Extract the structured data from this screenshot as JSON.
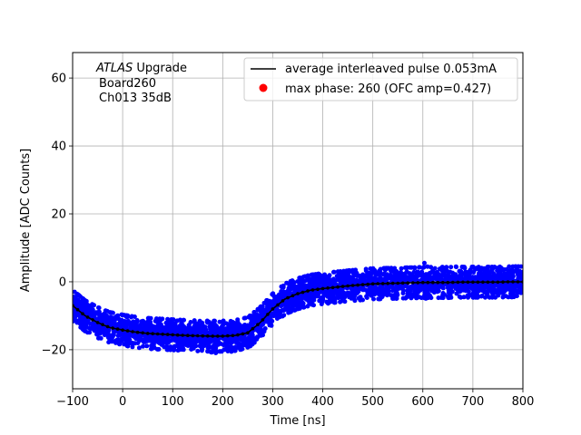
{
  "chart_data": {
    "type": "scatter",
    "xlabel": "Time [ns]",
    "ylabel": "Amplitude [ADC Counts]",
    "xlim": [
      -100,
      800
    ],
    "ylim": [
      -31.5,
      67.5
    ],
    "xticks": [
      -100,
      0,
      100,
      200,
      300,
      400,
      500,
      600,
      700,
      800
    ],
    "yticks": [
      -20,
      0,
      20,
      40,
      60
    ],
    "grid": true,
    "legend_position": "top-right",
    "annotation": {
      "italic": "ATLAS",
      "line1_rest": " Upgrade",
      "line2": "Board260",
      "line3": "Ch013 35dB"
    },
    "series": [
      {
        "name": "average interleaved pulse 0.053mA",
        "type": "line",
        "color": "#000000",
        "x": [
          -100,
          -75,
          -50,
          -25,
          0,
          25,
          50,
          75,
          100,
          125,
          150,
          175,
          200,
          225,
          250,
          275,
          300,
          325,
          350,
          375,
          400,
          425,
          450,
          475,
          500,
          525,
          550,
          575,
          600,
          625,
          650,
          675,
          700,
          725,
          750,
          775,
          800
        ],
        "y": [
          -7,
          -10,
          -12,
          -13.5,
          -14.2,
          -14.8,
          -15.2,
          -15.4,
          -15.6,
          -15.8,
          -15.9,
          -16,
          -16,
          -15.8,
          -15,
          -12,
          -8,
          -5,
          -3.5,
          -2.5,
          -2,
          -1.6,
          -1.2,
          -0.9,
          -0.6,
          -0.5,
          -0.4,
          -0.3,
          -0.2,
          -0.2,
          -0.2,
          -0.1,
          -0.1,
          -0.1,
          -0.1,
          0,
          0
        ]
      },
      {
        "name": "max phase: 260 (OFC amp=0.427)",
        "type": "scatter",
        "color": "#ff0000",
        "x": [],
        "y": []
      }
    ],
    "scatter_cloud": {
      "color": "#0000ff",
      "spread": 4.5,
      "count": 3200
    }
  }
}
